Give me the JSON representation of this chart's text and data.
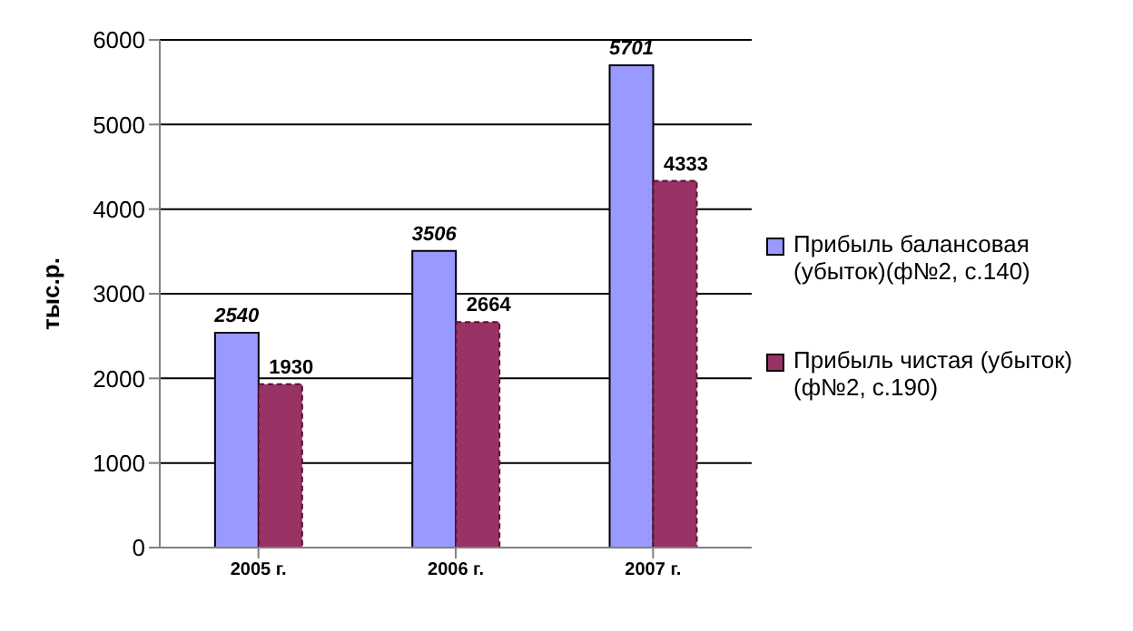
{
  "chart_data": {
    "type": "bar",
    "categories": [
      "2005 г.",
      "2006 г.",
      "2007 г."
    ],
    "series": [
      {
        "name": "Прибыль балансовая (убыток)(ф№2, с.140)",
        "color": "#9999ff",
        "values": [
          2540,
          3506,
          5701
        ]
      },
      {
        "name": "Прибыль чистая (убыток) (ф№2, с.190)",
        "color": "#993366",
        "values": [
          1930,
          2664,
          4333
        ]
      }
    ],
    "ylabel": "тыс.р.",
    "ylim": [
      0,
      6000
    ],
    "yticks": [
      0,
      1000,
      2000,
      3000,
      4000,
      5000,
      6000
    ],
    "grid": "y",
    "legend": "right",
    "data_labels": true
  }
}
